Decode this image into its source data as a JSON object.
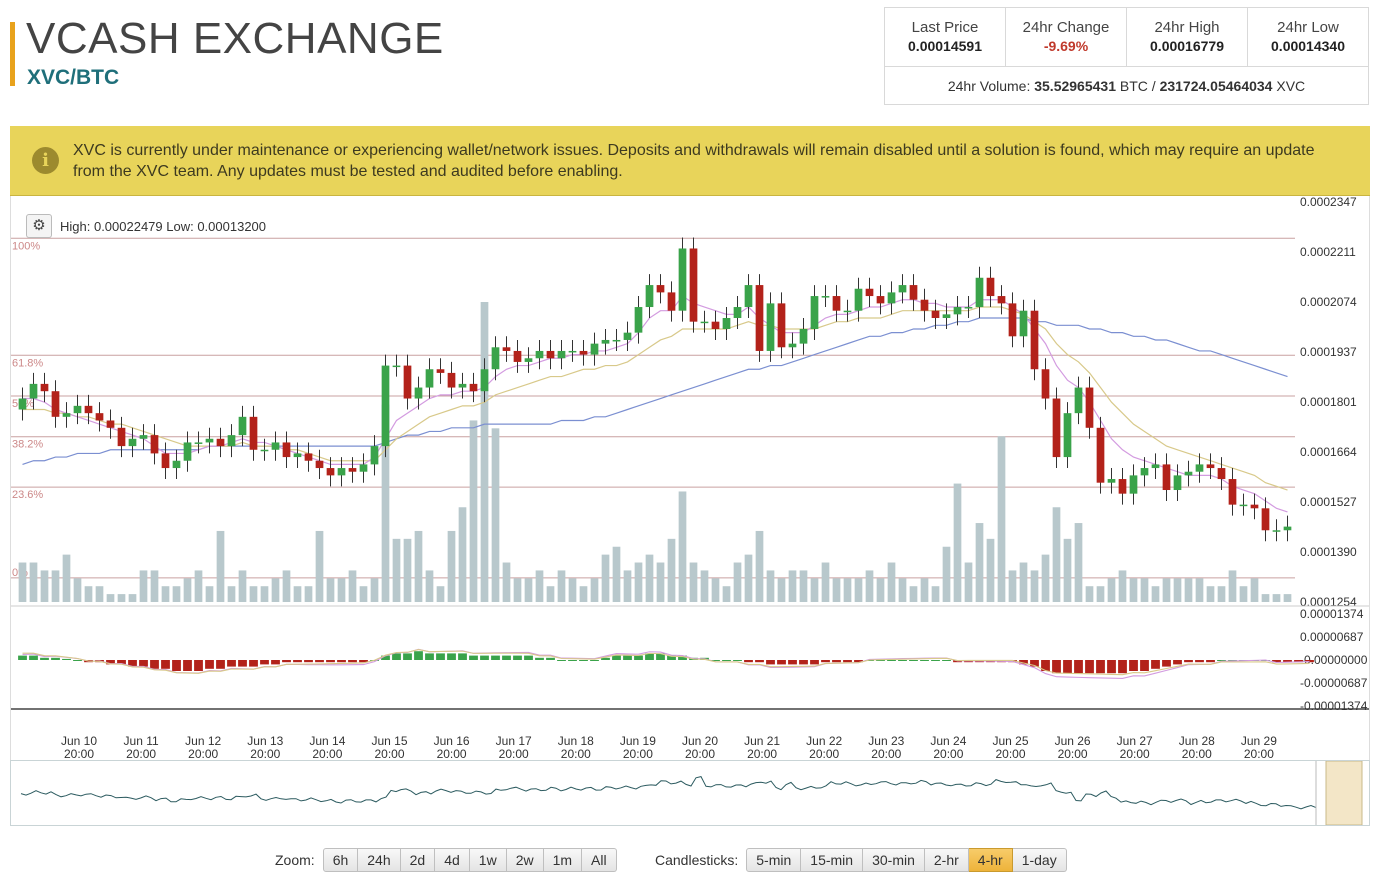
{
  "header": {
    "exchange_name": "VCASH EXCHANGE",
    "pair": "XVC/BTC"
  },
  "stats": {
    "last_price_label": "Last Price",
    "last_price": "0.00014591",
    "change_label": "24hr Change",
    "change": "-9.69%",
    "high_label": "24hr High",
    "high": "0.00016779",
    "low_label": "24hr Low",
    "low": "0.00014340",
    "volume_label": "24hr Volume:",
    "volume_btc": "35.52965431",
    "btc_unit": "BTC",
    "volume_sep": "/",
    "volume_xvc": "231724.05464034",
    "xvc_unit": "XVC"
  },
  "notice": {
    "icon": "info-icon",
    "text": "XVC is currently under maintenance or experiencing wallet/network issues. Deposits and withdrawals will remain disabled until a solution is found, which may require an update from the XVC team. Any updates must be tested and audited before enabling."
  },
  "chart_header": {
    "gear_icon": "gear-icon",
    "high_low_text": "High: 0.00022479   Low: 0.00013200"
  },
  "chart_data": {
    "type": "candlestick",
    "price_axis_labels": [
      "0.0002347",
      "0.0002211",
      "0.0002074",
      "0.0001937",
      "0.0001801",
      "0.0001664",
      "0.0001527",
      "0.0001390",
      "0.0001254"
    ],
    "price_range": [
      0.0001254,
      0.0002347
    ],
    "fib_levels": [
      {
        "label": "100%",
        "value": 0.00022479
      },
      {
        "label": "61.8%",
        "value": 0.00019281
      },
      {
        "label": "50%",
        "value": 0.00018168
      },
      {
        "label": "38.2%",
        "value": 0.00017056
      },
      {
        "label": "23.6%",
        "value": 0.00015678
      },
      {
        "label": "0%",
        "value": 0.000132
      }
    ],
    "macd_axis_labels": [
      "0.00001374",
      "0.00000687",
      "-0.00000000",
      "-0.00000687",
      "-0.00001374"
    ],
    "macd_range": [
      -1.374e-05,
      1.374e-05
    ],
    "x_labels": [
      [
        "Jun 10",
        "20:00"
      ],
      [
        "Jun 11",
        "20:00"
      ],
      [
        "Jun 12",
        "20:00"
      ],
      [
        "Jun 13",
        "20:00"
      ],
      [
        "Jun 14",
        "20:00"
      ],
      [
        "Jun 15",
        "20:00"
      ],
      [
        "Jun 16",
        "20:00"
      ],
      [
        "Jun 17",
        "20:00"
      ],
      [
        "Jun 18",
        "20:00"
      ],
      [
        "Jun 19",
        "20:00"
      ],
      [
        "Jun 20",
        "20:00"
      ],
      [
        "Jun 21",
        "20:00"
      ],
      [
        "Jun 22",
        "20:00"
      ],
      [
        "Jun 23",
        "20:00"
      ],
      [
        "Jun 24",
        "20:00"
      ],
      [
        "Jun 25",
        "20:00"
      ],
      [
        "Jun 26",
        "20:00"
      ],
      [
        "Jun 27",
        "20:00"
      ],
      [
        "Jun 28",
        "20:00"
      ],
      [
        "Jun 29",
        "20:00"
      ]
    ],
    "colors": {
      "up": "#3aa34a",
      "down": "#b3221a",
      "volume": "#b8c8cc",
      "ema_fast": "#d39be0",
      "ema_slow": "#d8c98a",
      "sma": "#7b8fd1",
      "fib": "#c9a0a0",
      "macd_pos": "#3aa34a",
      "macd_neg": "#b3221a"
    },
    "closes": [
      0.000181,
      0.000185,
      0.000183,
      0.000176,
      0.000177,
      0.000179,
      0.000177,
      0.000175,
      0.000173,
      0.000168,
      0.00017,
      0.000171,
      0.000166,
      0.000162,
      0.000164,
      0.000169,
      0.000169,
      0.00017,
      0.000168,
      0.000171,
      0.000176,
      0.000167,
      0.000167,
      0.000169,
      0.000165,
      0.000166,
      0.000164,
      0.000162,
      0.00016,
      0.000162,
      0.000161,
      0.000163,
      0.000168,
      0.00019,
      0.00019,
      0.000181,
      0.000184,
      0.000189,
      0.000188,
      0.000184,
      0.000185,
      0.000183,
      0.000189,
      0.000195,
      0.000194,
      0.000191,
      0.000192,
      0.000194,
      0.000192,
      0.000194,
      0.000194,
      0.000193,
      0.000196,
      0.000197,
      0.000197,
      0.000199,
      0.000206,
      0.000212,
      0.00021,
      0.000205,
      0.000222,
      0.000202,
      0.000202,
      0.0002,
      0.000203,
      0.000206,
      0.000212,
      0.000194,
      0.000207,
      0.000195,
      0.000196,
      0.0002,
      0.000209,
      0.000209,
      0.000205,
      0.000205,
      0.000211,
      0.000209,
      0.000207,
      0.00021,
      0.000212,
      0.000208,
      0.000205,
      0.000203,
      0.000204,
      0.000206,
      0.000206,
      0.000214,
      0.000209,
      0.000207,
      0.000198,
      0.000205,
      0.000189,
      0.000181,
      0.000165,
      0.000177,
      0.000184,
      0.000173,
      0.000158,
      0.000159,
      0.000155,
      0.00016,
      0.000162,
      0.000163,
      0.000156,
      0.00016,
      0.000161,
      0.000163,
      0.000162,
      0.000159,
      0.000152,
      0.000152,
      0.000151,
      0.000145,
      0.000145,
      0.000146
    ],
    "opens": [
      0.000178,
      0.000181,
      0.000185,
      0.000183,
      0.000176,
      0.000177,
      0.000179,
      0.000177,
      0.000175,
      0.000173,
      0.000168,
      0.00017,
      0.000171,
      0.000166,
      0.000162,
      0.000164,
      0.000169,
      0.000169,
      0.00017,
      0.000168,
      0.000171,
      0.000176,
      0.000167,
      0.000167,
      0.000169,
      0.000165,
      0.000166,
      0.000164,
      0.000162,
      0.00016,
      0.000162,
      0.000161,
      0.000163,
      0.000168,
      0.00019,
      0.00019,
      0.000181,
      0.000184,
      0.000189,
      0.000188,
      0.000184,
      0.000185,
      0.000183,
      0.000189,
      0.000195,
      0.000194,
      0.000191,
      0.000192,
      0.000194,
      0.000192,
      0.000194,
      0.000194,
      0.000193,
      0.000196,
      0.000197,
      0.000197,
      0.000199,
      0.000206,
      0.000212,
      0.00021,
      0.000205,
      0.000222,
      0.000202,
      0.000202,
      0.0002,
      0.000203,
      0.000206,
      0.000212,
      0.000194,
      0.000207,
      0.000195,
      0.000196,
      0.0002,
      0.000209,
      0.000209,
      0.000205,
      0.000205,
      0.000211,
      0.000209,
      0.000207,
      0.00021,
      0.000212,
      0.000208,
      0.000205,
      0.000203,
      0.000204,
      0.000206,
      0.000206,
      0.000214,
      0.000209,
      0.000207,
      0.000198,
      0.000205,
      0.000189,
      0.000181,
      0.000165,
      0.000177,
      0.000184,
      0.000173,
      0.000158,
      0.000159,
      0.000155,
      0.00016,
      0.000162,
      0.000163,
      0.000156,
      0.00016,
      0.000161,
      0.000163,
      0.000162,
      0.000159,
      0.000152,
      0.000152,
      0.000151,
      0.000145,
      0.000145
    ],
    "volumes": [
      5,
      5,
      4,
      4,
      6,
      3,
      2,
      2,
      1,
      1,
      1,
      4,
      4,
      2,
      2,
      3,
      4,
      2,
      9,
      2,
      4,
      2,
      2,
      3,
      4,
      2,
      2,
      9,
      3,
      3,
      4,
      2,
      3,
      25,
      8,
      8,
      9,
      4,
      2,
      9,
      12,
      23,
      38,
      22,
      5,
      3,
      3,
      4,
      2,
      4,
      3,
      2,
      3,
      6,
      7,
      4,
      5,
      6,
      5,
      8,
      14,
      5,
      4,
      3,
      2,
      5,
      6,
      9,
      4,
      3,
      4,
      4,
      3,
      5,
      3,
      3,
      3,
      4,
      3,
      5,
      3,
      2,
      3,
      2,
      7,
      15,
      5,
      10,
      8,
      21,
      4,
      5,
      4,
      6,
      12,
      8,
      10,
      2,
      2,
      3,
      4,
      3,
      3,
      2,
      3,
      3,
      3,
      3,
      2,
      2,
      4,
      2,
      3,
      1,
      1,
      1
    ],
    "ema_fast": [
      0.000181,
      0.000181,
      0.00018,
      0.000178,
      0.000177,
      0.000176,
      0.000175,
      0.000174,
      0.000173,
      0.000172,
      0.000171,
      0.00017,
      0.000168,
      0.000166,
      0.000166,
      0.000166,
      0.000167,
      0.000168,
      0.000168,
      0.000169,
      0.00017,
      0.000169,
      0.000169,
      0.000168,
      0.000167,
      0.000166,
      0.000165,
      0.000164,
      0.000163,
      0.000163,
      0.000163,
      0.000163,
      0.000165,
      0.00017,
      0.000175,
      0.000177,
      0.000179,
      0.000181,
      0.000182,
      0.000182,
      0.000183,
      0.000183,
      0.000184,
      0.000187,
      0.000189,
      0.00019,
      0.00019,
      0.000191,
      0.000192,
      0.000192,
      0.000193,
      0.000193,
      0.000194,
      0.000194,
      0.000195,
      0.000196,
      0.000199,
      0.000203,
      0.000205,
      0.000205,
      0.000209,
      0.000207,
      0.000206,
      0.000205,
      0.000204,
      0.000204,
      0.000206,
      0.000203,
      0.000201,
      0.000199,
      0.000199,
      0.000199,
      0.000201,
      0.000203,
      0.000204,
      0.000204,
      0.000205,
      0.000206,
      0.000206,
      0.000207,
      0.000208,
      0.000208,
      0.000207,
      0.000207,
      0.000206,
      0.000206,
      0.000206,
      0.000208,
      0.000208,
      0.000208,
      0.000206,
      0.000204,
      0.0002,
      0.000196,
      0.00019,
      0.000186,
      0.000184,
      0.00018,
      0.000175,
      0.00017,
      0.000167,
      0.000165,
      0.000164,
      0.000163,
      0.000162,
      0.000161,
      0.00016,
      0.00016,
      0.00016,
      0.000159,
      0.000157,
      0.000156,
      0.000155,
      0.000153,
      0.000151,
      0.00015
    ],
    "ema_slow": [
      0.000178,
      0.000178,
      0.000178,
      0.000177,
      0.000177,
      0.000176,
      0.000176,
      0.000175,
      0.000174,
      0.000174,
      0.000173,
      0.000172,
      0.000171,
      0.00017,
      0.000169,
      0.000168,
      0.000168,
      0.000168,
      0.000168,
      0.000168,
      0.000169,
      0.000168,
      0.000168,
      0.000168,
      0.000167,
      0.000167,
      0.000166,
      0.000165,
      0.000164,
      0.000164,
      0.000164,
      0.000164,
      0.000164,
      0.000167,
      0.00017,
      0.000172,
      0.000174,
      0.000176,
      0.000177,
      0.000178,
      0.000179,
      0.000179,
      0.00018,
      0.000182,
      0.000183,
      0.000184,
      0.000185,
      0.000186,
      0.000187,
      0.000187,
      0.000188,
      0.000189,
      0.000189,
      0.00019,
      0.00019,
      0.000191,
      0.000193,
      0.000195,
      0.000197,
      0.000198,
      0.0002,
      0.0002,
      0.0002,
      0.0002,
      0.0002,
      0.000201,
      0.000202,
      0.000201,
      0.000201,
      0.0002,
      0.0002,
      0.0002,
      0.0002,
      0.000201,
      0.000202,
      0.000202,
      0.000203,
      0.000203,
      0.000203,
      0.000204,
      0.000205,
      0.000205,
      0.000205,
      0.000205,
      0.000205,
      0.000205,
      0.000205,
      0.000206,
      0.000206,
      0.000206,
      0.000205,
      0.000204,
      0.000202,
      0.0002,
      0.000196,
      0.000193,
      0.000191,
      0.000188,
      0.000184,
      0.00018,
      0.000177,
      0.000174,
      0.000172,
      0.00017,
      0.000168,
      0.000167,
      0.000166,
      0.000165,
      0.000164,
      0.000163,
      0.000162,
      0.000161,
      0.00016,
      0.000158,
      0.000157,
      0.000156
    ],
    "sma": [
      0.000163,
      0.000164,
      0.000164,
      0.000165,
      0.000165,
      0.000166,
      0.000166,
      0.000166,
      0.000167,
      0.000167,
      0.000167,
      0.000167,
      0.000167,
      0.000167,
      0.000167,
      0.000167,
      0.000167,
      0.000168,
      0.000168,
      0.000168,
      0.000168,
      0.000168,
      0.000168,
      0.000168,
      0.000168,
      0.000168,
      0.000168,
      0.000168,
      0.000168,
      0.000168,
      0.000168,
      0.000168,
      0.000168,
      0.000169,
      0.00017,
      0.000171,
      0.000171,
      0.000172,
      0.000172,
      0.000173,
      0.000173,
      0.000173,
      0.000174,
      0.000174,
      0.000174,
      0.000174,
      0.000174,
      0.000174,
      0.000174,
      0.000175,
      0.000175,
      0.000175,
      0.000176,
      0.000176,
      0.000177,
      0.000178,
      0.000179,
      0.00018,
      0.000181,
      0.000182,
      0.000183,
      0.000184,
      0.000185,
      0.000186,
      0.000187,
      0.000188,
      0.000189,
      0.000189,
      0.00019,
      0.00019,
      0.000191,
      0.000192,
      0.000193,
      0.000194,
      0.000195,
      0.000196,
      0.000197,
      0.000198,
      0.000198,
      0.000199,
      0.000199,
      0.0002,
      0.0002,
      0.000201,
      0.000201,
      0.000202,
      0.000202,
      0.000203,
      0.000203,
      0.000203,
      0.000203,
      0.000203,
      0.000202,
      0.000202,
      0.000201,
      0.000201,
      0.000201,
      0.0002,
      0.0002,
      0.000199,
      0.000199,
      0.000198,
      0.000198,
      0.000197,
      0.000197,
      0.000196,
      0.000195,
      0.000194,
      0.000194,
      0.000193,
      0.000192,
      0.000191,
      0.00019,
      0.000189,
      0.000188,
      0.000187
    ],
    "macd_hist": [
      2,
      2,
      1,
      1,
      0.5,
      0,
      -1,
      -1,
      -2,
      -2,
      -3,
      -3,
      -4,
      -4,
      -5,
      -5,
      -5,
      -4,
      -4,
      -3,
      -3,
      -3,
      -2,
      -2,
      -1,
      -1,
      -1,
      -1,
      -1,
      -1,
      -1,
      -1,
      0,
      2,
      3,
      3,
      4,
      3,
      3,
      3,
      3,
      2,
      2,
      2,
      2,
      2,
      2,
      1,
      1,
      0,
      0,
      0,
      0,
      1,
      2,
      2,
      2,
      3,
      3,
      2,
      2,
      1,
      1,
      0,
      0,
      0,
      -1,
      -1,
      -2,
      -2,
      -2,
      -2,
      -2,
      -1,
      -1,
      -1,
      -1,
      0,
      0,
      0,
      0,
      0,
      0,
      0,
      0,
      -1,
      -1,
      -1,
      -1,
      -1,
      -1,
      -2,
      -3,
      -5,
      -6,
      -6,
      -6,
      -6,
      -6,
      -6,
      -6,
      -5,
      -5,
      -4,
      -3,
      -2,
      -1,
      -1,
      -1,
      0,
      0,
      0,
      0,
      0,
      -1,
      -1,
      -1,
      -1
    ]
  },
  "navigator": {
    "label": "range-navigator"
  },
  "controls": {
    "zoom_label": "Zoom:",
    "zoom": [
      "6h",
      "24h",
      "2d",
      "4d",
      "1w",
      "2w",
      "1m",
      "All"
    ],
    "candles_label": "Candlesticks:",
    "candles": [
      "5-min",
      "15-min",
      "30-min",
      "2-hr",
      "4-hr",
      "1-day"
    ],
    "active_candle": "4-hr"
  }
}
